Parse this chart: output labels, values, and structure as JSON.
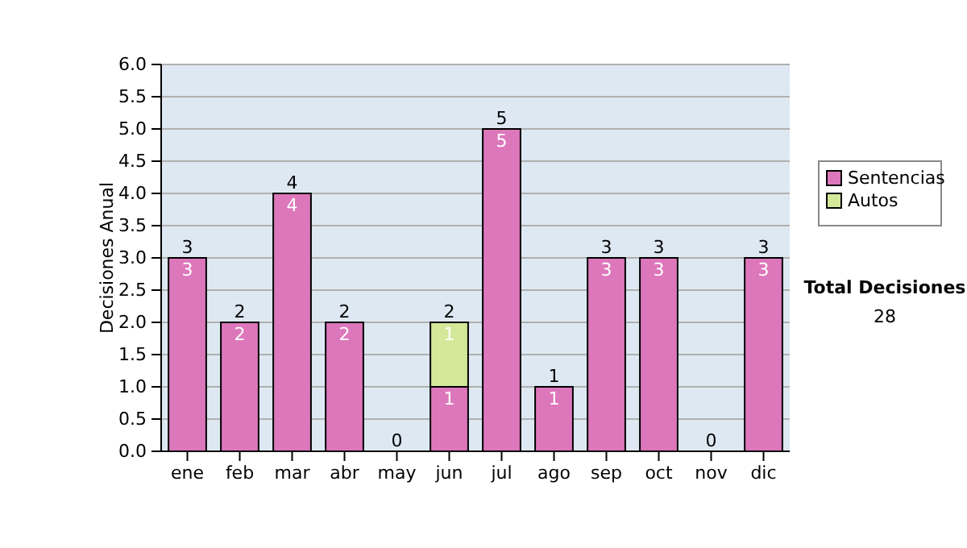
{
  "chart_data": {
    "type": "bar",
    "stacked": true,
    "ylabel": "Decisiones Anual",
    "categories": [
      "ene",
      "feb",
      "mar",
      "abr",
      "may",
      "jun",
      "jul",
      "ago",
      "sep",
      "oct",
      "nov",
      "dic"
    ],
    "series": [
      {
        "name": "Sentencias",
        "color": "#dd77bb",
        "values": [
          3,
          2,
          4,
          2,
          0,
          1,
          5,
          1,
          3,
          3,
          0,
          3
        ],
        "value_labels": [
          "3",
          "2",
          "4",
          "2",
          null,
          "1",
          "5",
          "1",
          "3",
          "3",
          null,
          "3"
        ]
      },
      {
        "name": "Autos",
        "color": "#d4e89a",
        "values": [
          0,
          0,
          0,
          0,
          0,
          1,
          0,
          0,
          0,
          0,
          0,
          0
        ],
        "value_labels": [
          null,
          null,
          null,
          null,
          null,
          "1",
          null,
          null,
          null,
          null,
          null,
          null
        ]
      }
    ],
    "totals": [
      "3",
      "2",
      "4",
      "2",
      "0",
      "2",
      "5",
      "1",
      "3",
      "3",
      "0",
      "3"
    ],
    "ylim": [
      0,
      6
    ],
    "yticks": [
      {
        "value": 0,
        "label": "0.0"
      },
      {
        "value": 0.5,
        "label": "0.5"
      },
      {
        "value": 1,
        "label": "1.0"
      },
      {
        "value": 1.5,
        "label": "1.5"
      },
      {
        "value": 2,
        "label": "2.0"
      },
      {
        "value": 2.5,
        "label": "2.5"
      },
      {
        "value": 3,
        "label": "3.0"
      },
      {
        "value": 3.5,
        "label": "3.5"
      },
      {
        "value": 4,
        "label": "4.0"
      },
      {
        "value": 4.5,
        "label": "4.5"
      },
      {
        "value": 5,
        "label": "5.0"
      },
      {
        "value": 5.5,
        "label": "5.5"
      },
      {
        "value": 6,
        "label": "6.0"
      }
    ],
    "grid": "y",
    "legend": "right",
    "annotations": [
      "Total Decisiones",
      "28"
    ]
  }
}
